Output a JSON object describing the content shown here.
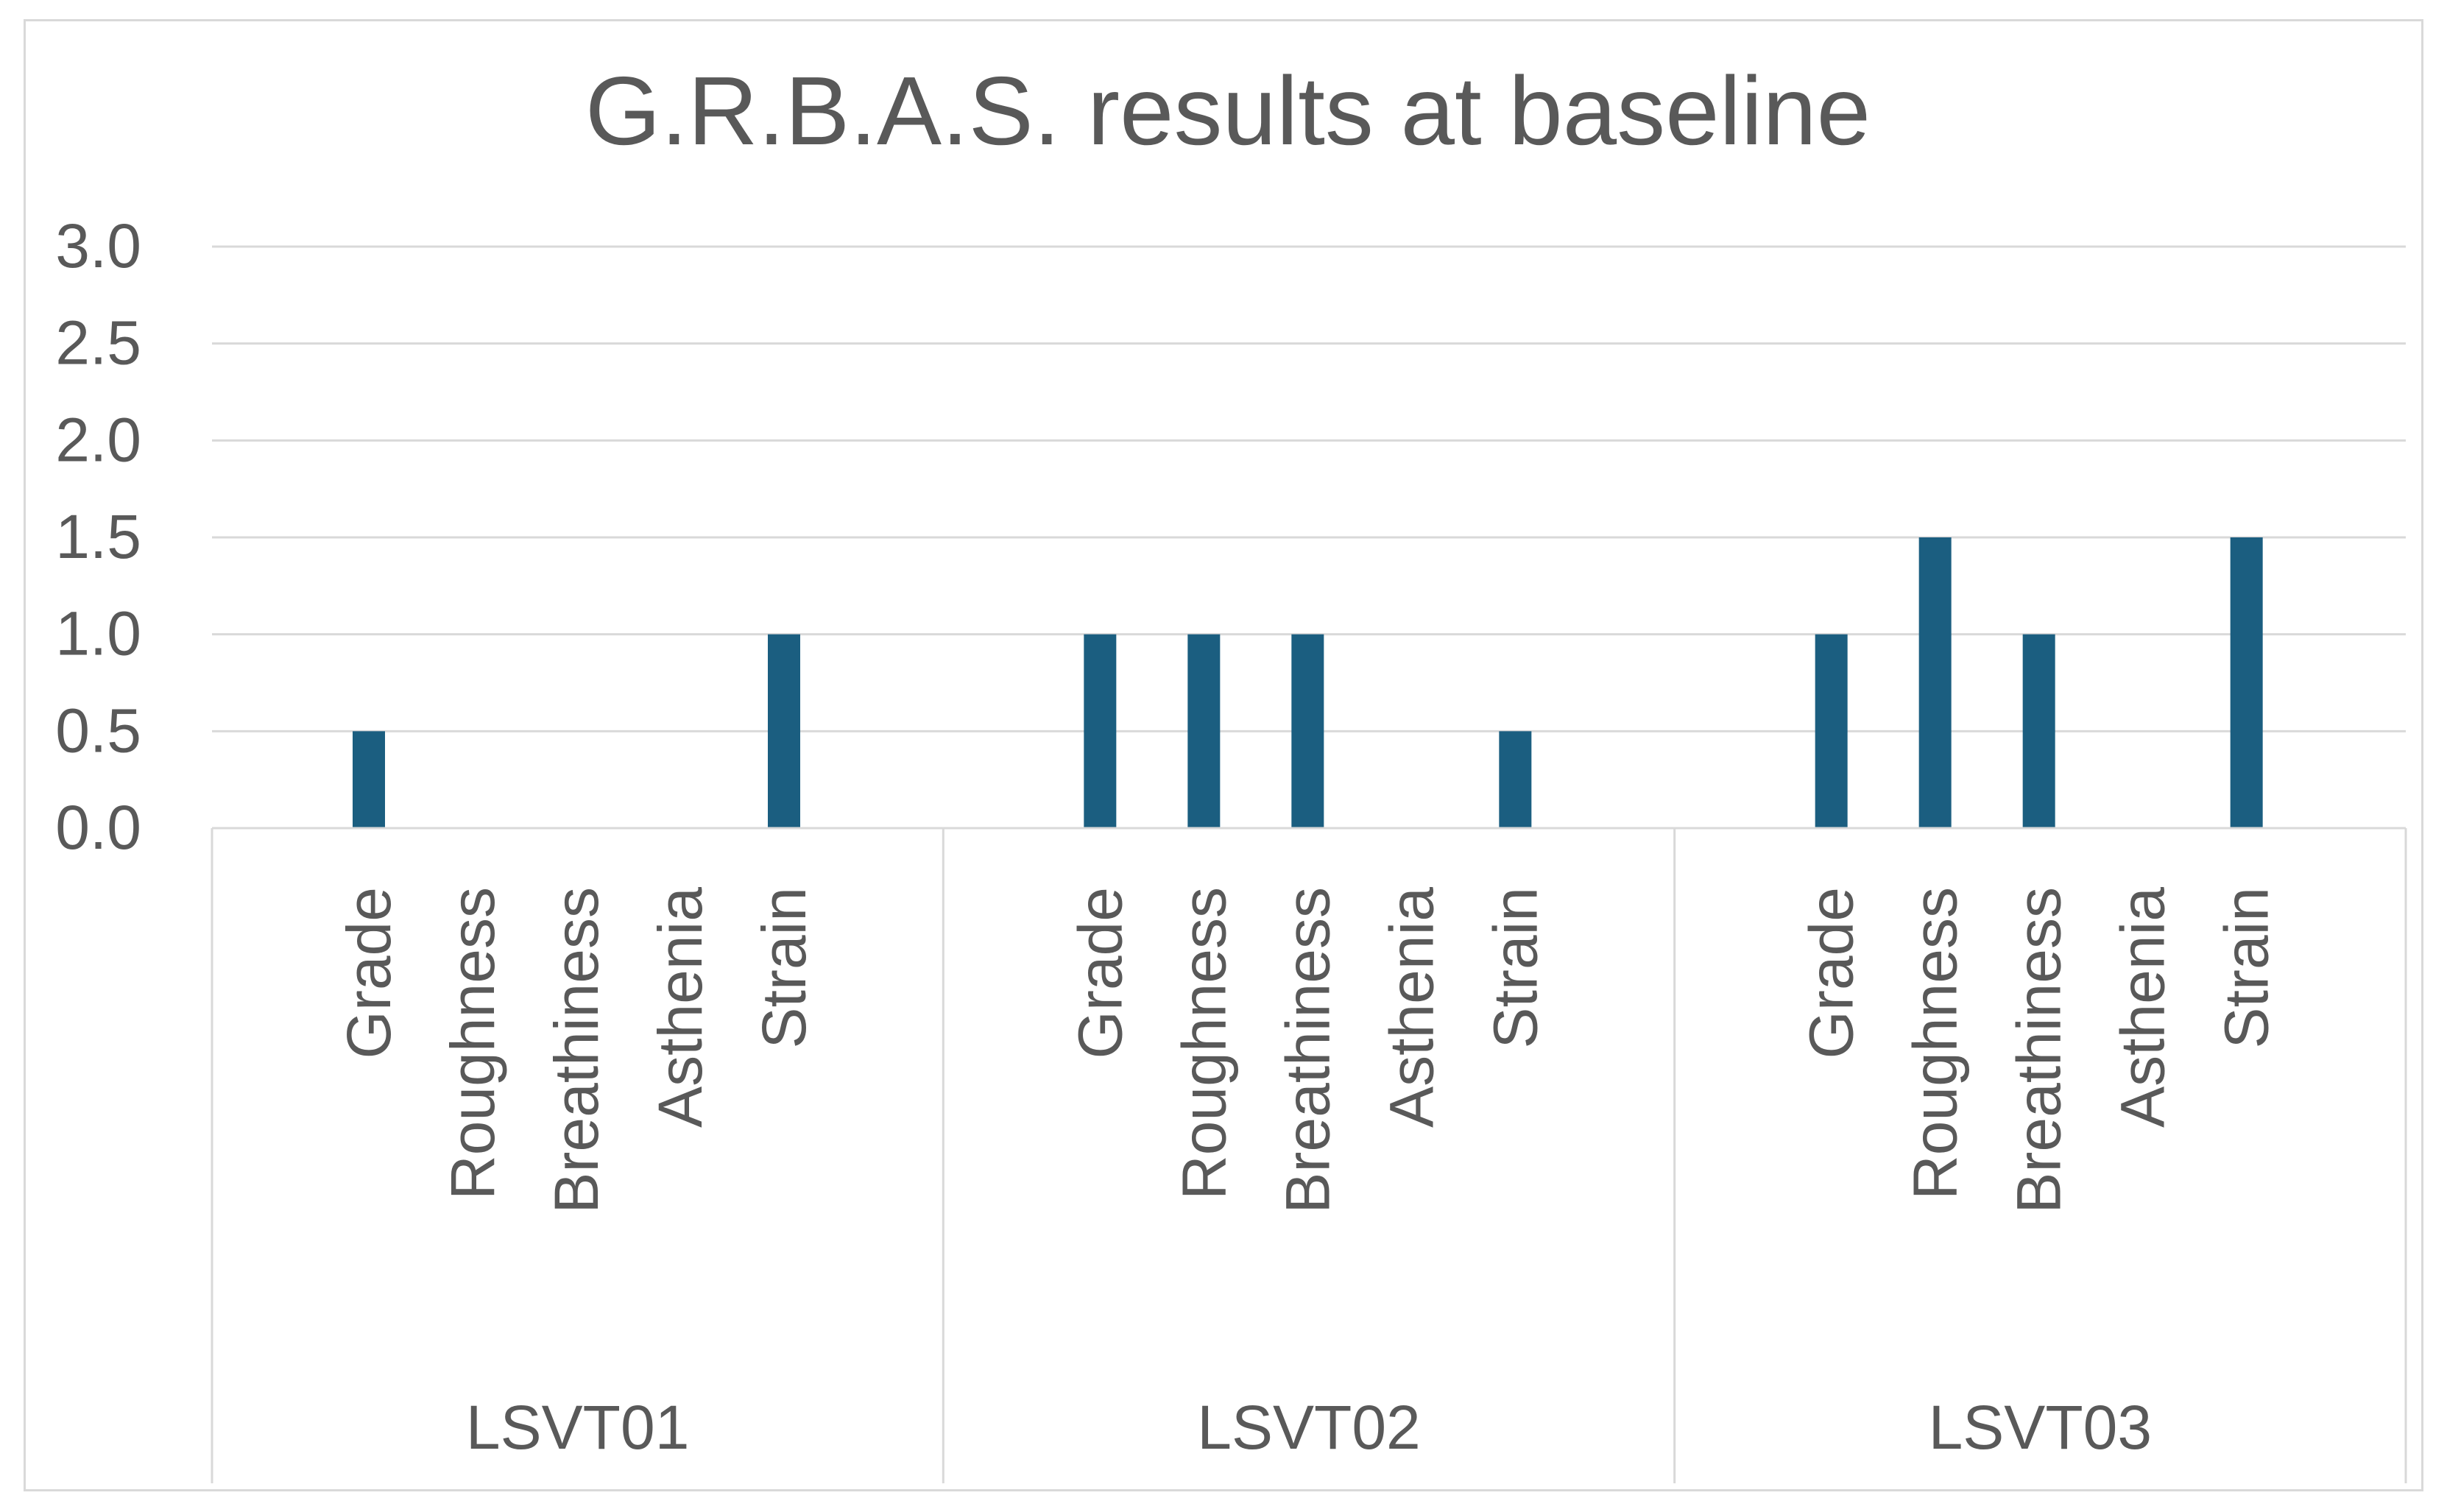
{
  "chart_data": {
    "type": "bar",
    "title": "G.R.B.A.S. results at baseline",
    "xlabel": "",
    "ylabel": "",
    "ylim": [
      0,
      3
    ],
    "yticks": [
      "0.0",
      "0.5",
      "1.0",
      "1.5",
      "2.0",
      "2.5",
      "3.0"
    ],
    "grid": true,
    "legend": "none",
    "bar_color": "#1b5e80",
    "groups": [
      {
        "name": "LSVT01",
        "categories": [
          "Grade",
          "Roughness",
          "Breathiness",
          "Asthenia",
          "Strain"
        ],
        "values": [
          0.5,
          0,
          0,
          0,
          1.0
        ]
      },
      {
        "name": "LSVT02",
        "categories": [
          "Grade",
          "Roughness",
          "Breathiness",
          "Asthenia",
          "Strain"
        ],
        "values": [
          1.0,
          1.0,
          1.0,
          0,
          0.5
        ]
      },
      {
        "name": "LSVT03",
        "categories": [
          "Grade",
          "Roughness",
          "Breathiness",
          "Asthenia",
          "Strain"
        ],
        "values": [
          1.0,
          1.5,
          1.0,
          0,
          1.5
        ]
      }
    ]
  }
}
